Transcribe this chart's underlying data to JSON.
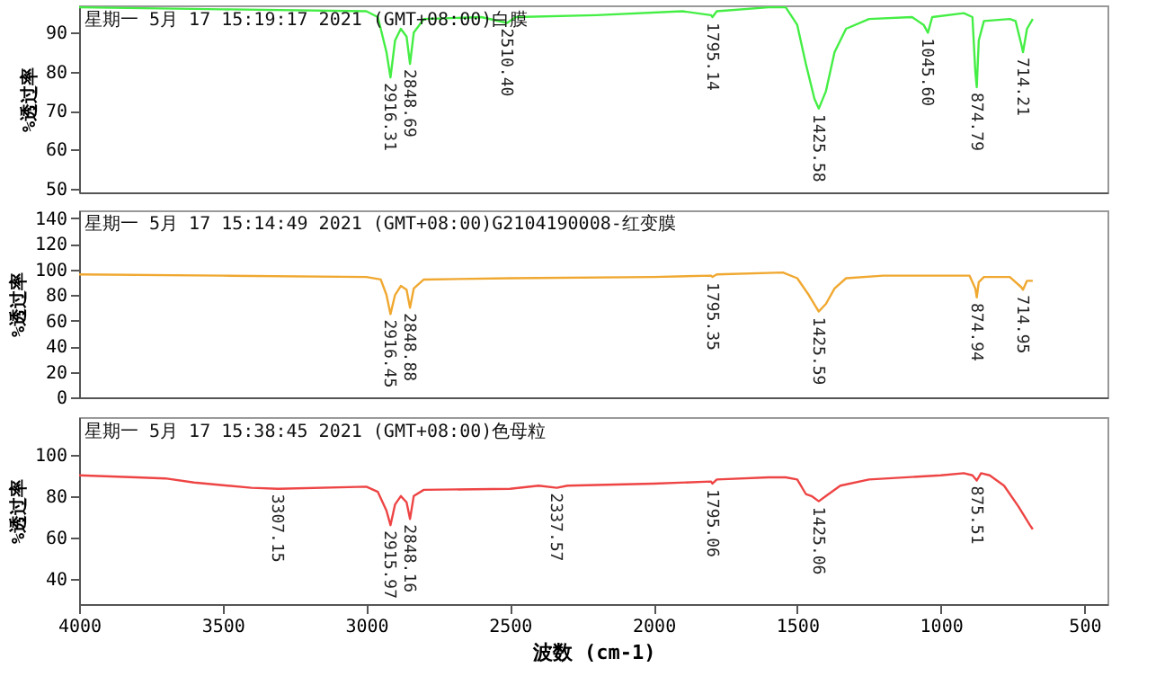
{
  "chart_data": [
    {
      "type": "line",
      "title": "星期一 5月 17 15:19:17 2021 (GMT+08:00)白膜",
      "ylabel": "%透过率",
      "tick_labels": "y",
      "xlim": [
        4000,
        420
      ],
      "ylim": [
        49,
        97
      ],
      "yticks": [
        50,
        60,
        70,
        80,
        90
      ],
      "x": [
        4000,
        3500,
        3000,
        2960,
        2930,
        2916,
        2900,
        2880,
        2860,
        2848,
        2835,
        2800,
        2600,
        2510,
        2480,
        2200,
        1900,
        1800,
        1795,
        1780,
        1600,
        1540,
        1500,
        1470,
        1440,
        1425,
        1400,
        1370,
        1330,
        1250,
        1100,
        1060,
        1045,
        1030,
        920,
        890,
        880,
        875,
        868,
        850,
        760,
        740,
        720,
        714,
        700,
        680
      ],
      "series": [
        {
          "color": "#44ee44",
          "values": [
            96.5,
            96,
            95.5,
            94,
            85,
            78.5,
            88,
            91,
            89,
            82,
            90,
            93.5,
            94,
            92.5,
            94,
            94.5,
            95.5,
            94.5,
            94,
            95.5,
            96.5,
            96.5,
            92,
            82,
            73,
            70.5,
            75,
            85,
            91,
            93.5,
            94,
            92,
            90,
            94,
            95,
            94,
            80,
            76,
            88,
            93,
            93.5,
            93,
            87,
            85,
            91,
            93.5
          ]
        }
      ],
      "annotations": [
        {
          "text": "2916.31",
          "x": 2916,
          "y": 78.5
        },
        {
          "text": "2848.69",
          "x": 2848,
          "y": 82
        },
        {
          "text": "2510.40",
          "x": 2510,
          "y": 92.5
        },
        {
          "text": "1795.14",
          "x": 1795,
          "y": 94
        },
        {
          "text": "1425.58",
          "x": 1425,
          "y": 70.5
        },
        {
          "text": "1045.60",
          "x": 1045,
          "y": 90
        },
        {
          "text": "874.79",
          "x": 875,
          "y": 76
        },
        {
          "text": "714.21",
          "x": 714,
          "y": 85
        }
      ]
    },
    {
      "type": "line",
      "title": "星期一 5月 17 15:14:49 2021 (GMT+08:00)G2104190008-红变膜",
      "ylabel": "%透过率",
      "tick_labels": "y",
      "xlim": [
        4000,
        420
      ],
      "ylim": [
        0,
        146
      ],
      "yticks": [
        0,
        20,
        40,
        60,
        80,
        100,
        120,
        140
      ],
      "x": [
        4000,
        3500,
        3000,
        2950,
        2930,
        2916,
        2900,
        2880,
        2860,
        2848,
        2835,
        2800,
        2500,
        2000,
        1800,
        1795,
        1780,
        1550,
        1500,
        1460,
        1425,
        1400,
        1370,
        1330,
        1200,
        900,
        880,
        875,
        868,
        850,
        760,
        720,
        714,
        700,
        680
      ],
      "series": [
        {
          "color": "#f0a830",
          "values": [
            96,
            95,
            94,
            92,
            80,
            65,
            80,
            87,
            84,
            70,
            85,
            92,
            93,
            94,
            95,
            94,
            96,
            97.5,
            93,
            80,
            67,
            73,
            85,
            93,
            95,
            95,
            85,
            78,
            90,
            94,
            94,
            86,
            84,
            91,
            91
          ]
        }
      ],
      "annotations": [
        {
          "text": "2916.45",
          "x": 2916,
          "y": 65
        },
        {
          "text": "2848.88",
          "x": 2848,
          "y": 70
        },
        {
          "text": "1795.35",
          "x": 1795,
          "y": 94
        },
        {
          "text": "1425.59",
          "x": 1425,
          "y": 67
        },
        {
          "text": "874.94",
          "x": 875,
          "y": 78
        },
        {
          "text": "714.95",
          "x": 714,
          "y": 84
        }
      ]
    },
    {
      "type": "line",
      "title": "星期一 5月 17 15:38:45 2021 (GMT+08:00)色母粒",
      "xlabel": "波数 (cm-1)",
      "ylabel": "%透过率",
      "xlim": [
        4000,
        420
      ],
      "xticks": [
        4000,
        3500,
        3000,
        2500,
        2000,
        1500,
        1000,
        500
      ],
      "ylim": [
        28,
        118
      ],
      "yticks": [
        40,
        60,
        80,
        100
      ],
      "x": [
        4000,
        3800,
        3700,
        3600,
        3400,
        3307,
        3000,
        2960,
        2930,
        2916,
        2900,
        2880,
        2860,
        2848,
        2835,
        2800,
        2500,
        2400,
        2337,
        2300,
        2000,
        1800,
        1795,
        1780,
        1600,
        1540,
        1500,
        1470,
        1450,
        1425,
        1400,
        1350,
        1250,
        1000,
        920,
        890,
        875,
        860,
        830,
        780,
        730,
        690,
        680
      ],
      "series": [
        {
          "color": "#ee4444",
          "values": [
            90,
            89,
            88.5,
            86.5,
            84,
            83.5,
            84.5,
            82,
            73,
            66,
            76,
            80,
            77,
            69,
            80,
            83,
            83.5,
            85,
            84,
            85,
            86,
            87,
            86,
            88,
            89,
            89,
            88,
            81,
            80,
            77.5,
            80,
            85,
            88,
            90,
            91,
            90,
            87.5,
            91,
            90,
            85,
            75,
            66,
            64
          ]
        }
      ],
      "annotations": [
        {
          "text": "3307.15",
          "x": 3307,
          "y": 83.5
        },
        {
          "text": "2915.97",
          "x": 2916,
          "y": 66
        },
        {
          "text": "2848.16",
          "x": 2848,
          "y": 69
        },
        {
          "text": "2337.57",
          "x": 2337,
          "y": 84
        },
        {
          "text": "1795.06",
          "x": 1795,
          "y": 86
        },
        {
          "text": "1425.06",
          "x": 1425,
          "y": 77.5
        },
        {
          "text": "875.51",
          "x": 875,
          "y": 87.5
        }
      ]
    }
  ]
}
